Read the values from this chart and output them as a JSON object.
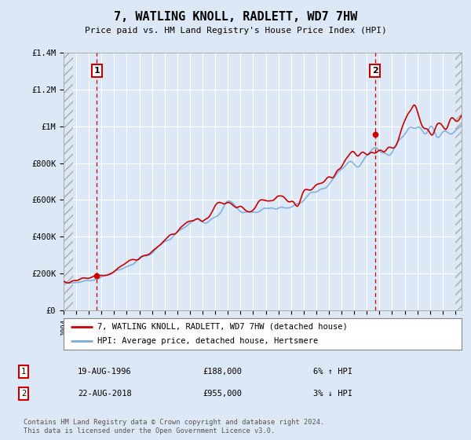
{
  "title": "7, WATLING KNOLL, RADLETT, WD7 7HW",
  "subtitle": "Price paid vs. HM Land Registry's House Price Index (HPI)",
  "legend_line1": "7, WATLING KNOLL, RADLETT, WD7 7HW (detached house)",
  "legend_line2": "HPI: Average price, detached house, Hertsmere",
  "annotation1_label": "1",
  "annotation1_date": "19-AUG-1996",
  "annotation1_price": "£188,000",
  "annotation1_hpi": "6% ↑ HPI",
  "annotation2_label": "2",
  "annotation2_date": "22-AUG-2018",
  "annotation2_price": "£955,000",
  "annotation2_hpi": "3% ↓ HPI",
  "footer": "Contains HM Land Registry data © Crown copyright and database right 2024.\nThis data is licensed under the Open Government Licence v3.0.",
  "sale1_year": 1996.64,
  "sale1_value": 188000,
  "sale2_year": 2018.64,
  "sale2_value": 955000,
  "hpi_color": "#7aabdb",
  "price_color": "#cc0000",
  "vline_color": "#cc0000",
  "background_color": "#dce8f5",
  "plot_bg_color": "#dce8f5",
  "ylim_max": 1400000,
  "xlim_start": 1994.0,
  "xlim_end": 2025.5
}
